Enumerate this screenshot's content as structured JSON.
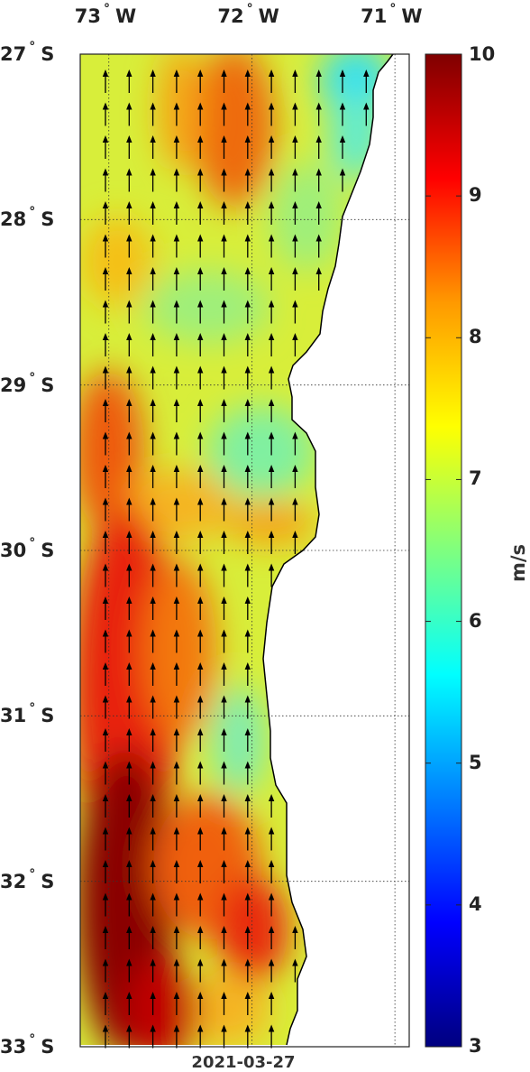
{
  "map": {
    "date": "2021-03-27",
    "lon_labels": [
      {
        "deg": "73",
        "dir": "W",
        "value": -73
      },
      {
        "deg": "72",
        "dir": "W",
        "value": -72
      },
      {
        "deg": "71",
        "dir": "W",
        "value": -71
      }
    ],
    "lat_labels": [
      {
        "deg": "27",
        "dir": "S",
        "value": -27
      },
      {
        "deg": "28",
        "dir": "S",
        "value": -28
      },
      {
        "deg": "29",
        "dir": "S",
        "value": -29
      },
      {
        "deg": "30",
        "dir": "S",
        "value": -30
      },
      {
        "deg": "31",
        "dir": "S",
        "value": -31
      },
      {
        "deg": "32",
        "dir": "S",
        "value": -32
      },
      {
        "deg": "33",
        "dir": "S",
        "value": -33
      }
    ],
    "lon_range": [
      -73.2,
      -70.9
    ],
    "lat_range": [
      -33,
      -27
    ],
    "grid": true,
    "arrow_direction": "north",
    "coast_label": ""
  },
  "colorbar": {
    "unit": "m/s",
    "min": 3,
    "max": 10,
    "ticks": [
      "3",
      "4",
      "5",
      "6",
      "7",
      "8",
      "9",
      "10"
    ],
    "colors": [
      "#00007f",
      "#0000ff",
      "#007fff",
      "#00ffff",
      "#7fff7f",
      "#ffff00",
      "#ff7f00",
      "#ff0000",
      "#7f0000"
    ]
  }
}
